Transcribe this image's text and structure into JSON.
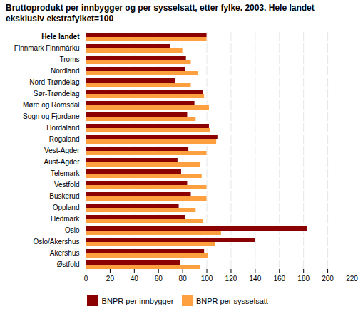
{
  "chart_data": {
    "type": "bar",
    "orientation": "horizontal",
    "title": "Bruttoprodukt per innbygger og per sysselsatt, etter fylke. 2003. Hele landet\neksklusiv ekstrafylket=100",
    "categories": [
      "Hele landet",
      "Finnmark Finnmárku",
      "Troms",
      "Nordland",
      "Nord-Trøndelag",
      "Sør-Trøndelag",
      "Møre og Romsdal",
      "Sogn og Fjordane",
      "Hordaland",
      "Rogaland",
      "Vest-Agder",
      "Aust-Agder",
      "Telemark",
      "Vestfold",
      "Buskerud",
      "Oppland",
      "Hedmark",
      "Oslo",
      "Oslo/Akershus",
      "Akershus",
      "Østfold"
    ],
    "series": [
      {
        "name": "BNPR per innbygger",
        "color": "#8B0000",
        "values": [
          100,
          70,
          83,
          82,
          74,
          97,
          90,
          84,
          102,
          109,
          85,
          76,
          79,
          84,
          87,
          77,
          82,
          183,
          140,
          98,
          78
        ]
      },
      {
        "name": "BNPR per sysselsatt",
        "color": "#FFA040",
        "values": [
          100,
          80,
          87,
          93,
          87,
          98,
          102,
          91,
          103,
          108,
          100,
          95,
          96,
          100,
          100,
          91,
          97,
          112,
          107,
          101,
          95
        ]
      }
    ],
    "xlim": [
      0,
      220
    ],
    "xticks": [
      0,
      20,
      40,
      60,
      80,
      100,
      120,
      140,
      160,
      180,
      200,
      220
    ],
    "grid": true,
    "legend": "lower center"
  }
}
